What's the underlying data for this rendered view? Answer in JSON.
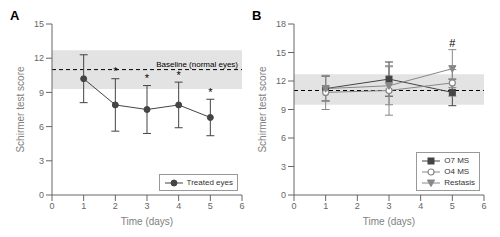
{
  "chart_data": [
    {
      "type": "line",
      "title": "A",
      "x_label": "Time (days)",
      "y_label": "Schirmer test score",
      "xlim": [
        0,
        6
      ],
      "ylim": [
        0,
        15
      ],
      "xticks": [
        0,
        1,
        2,
        3,
        4,
        5,
        6
      ],
      "yticks": [
        0,
        3,
        6,
        9,
        12,
        15
      ],
      "baseline": 11.0,
      "baseline_band": [
        9.3,
        12.7
      ],
      "baseline_label": "Baseline (normal eyes)",
      "legend": "lower right",
      "series": [
        {
          "name": "Treated eyes",
          "color": "#444444",
          "marker": "circle",
          "line_style": "solid",
          "x": [
            1,
            2,
            3,
            4,
            5
          ],
          "values": [
            10.2,
            7.9,
            7.5,
            7.9,
            6.8
          ],
          "error": [
            2.1,
            2.3,
            2.1,
            2.0,
            1.6
          ]
        }
      ],
      "annotations": [
        {
          "x": 2,
          "y": 10.5,
          "text": "*"
        },
        {
          "x": 3,
          "y": 9.9,
          "text": "*"
        },
        {
          "x": 4,
          "y": 10.2,
          "text": "*"
        },
        {
          "x": 5,
          "y": 8.7,
          "text": "*"
        }
      ]
    },
    {
      "type": "line",
      "title": "B",
      "x_label": "Time (days)",
      "y_label": "Schirmer test score",
      "xlim": [
        0,
        6
      ],
      "ylim": [
        0,
        18
      ],
      "xticks": [
        0,
        1,
        2,
        3,
        4,
        5,
        6
      ],
      "yticks": [
        0,
        3,
        6,
        9,
        12,
        15,
        18
      ],
      "baseline": 11.0,
      "baseline_band": [
        9.5,
        12.7
      ],
      "legend": "lower right",
      "series": [
        {
          "name": "O7 MS",
          "color": "#444444",
          "marker": "square",
          "line_style": "solid",
          "x": [
            1,
            3,
            5
          ],
          "values": [
            11.2,
            12.2,
            10.8
          ],
          "error": [
            1.3,
            1.8,
            1.4
          ]
        },
        {
          "name": "O4 MS",
          "color": "#888888",
          "marker": "circle-open",
          "line_style": "solid",
          "x": [
            1,
            3,
            5
          ],
          "values": [
            10.8,
            11.0,
            11.8
          ],
          "error": [
            1.8,
            2.6,
            1.4
          ]
        },
        {
          "name": "Restasis",
          "color": "#888888",
          "marker": "triangle-down",
          "line_style": "solid",
          "x": [
            1,
            3,
            5
          ],
          "values": [
            11.2,
            11.5,
            13.3
          ],
          "error": [
            1.3,
            2.0,
            2.0
          ]
        }
      ],
      "annotations": [
        {
          "x": 5,
          "y": 15.6,
          "text": "#"
        }
      ]
    }
  ]
}
